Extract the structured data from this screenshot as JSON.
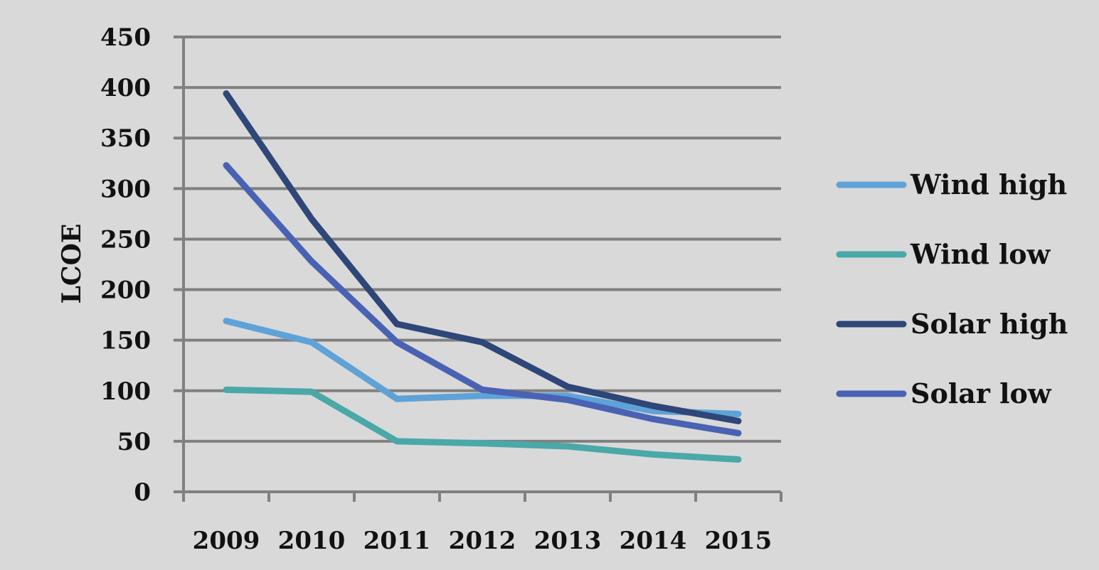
{
  "chart_data": {
    "type": "line",
    "title": "",
    "xlabel": "",
    "ylabel": "LCOE",
    "x": [
      "2009",
      "2010",
      "2011",
      "2012",
      "2013",
      "2014",
      "2015"
    ],
    "ylim": [
      0,
      450
    ],
    "yticks": [
      0,
      50,
      100,
      150,
      200,
      250,
      300,
      350,
      400,
      450
    ],
    "grid": true,
    "legend_position": "right",
    "series": [
      {
        "name": "Wind high",
        "color": "#5ea2d8",
        "values": [
          169,
          148,
          92,
          95,
          95,
          80,
          77
        ]
      },
      {
        "name": "Wind low",
        "color": "#4aa8a8",
        "values": [
          101,
          99,
          50,
          48,
          45,
          37,
          32
        ]
      },
      {
        "name": "Solar high",
        "color": "#2e4678",
        "values": [
          394,
          270,
          166,
          148,
          104,
          85,
          70
        ]
      },
      {
        "name": "Solar low",
        "color": "#4a62b3",
        "values": [
          323,
          228,
          148,
          101,
          91,
          72,
          58
        ]
      }
    ]
  },
  "colors": {
    "plot_background": "#d9d9d9",
    "gridline": "#808080"
  }
}
